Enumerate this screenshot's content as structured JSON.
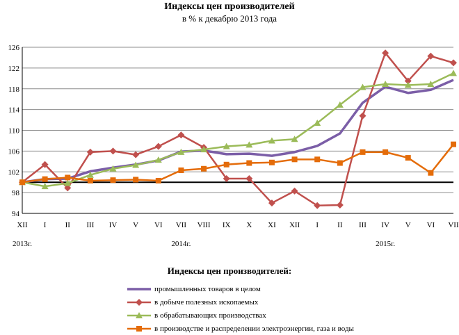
{
  "header": {
    "title": "Индексы цен производителей",
    "subtitle": "в % к декабрю 2013 года"
  },
  "legend": {
    "title": "Индексы цен производителей:"
  },
  "chart_data": {
    "type": "line",
    "title": "Индексы цен производителей",
    "subtitle": "в % к декабрю 2013 года",
    "xlabel": "",
    "ylabel": "",
    "ylim": [
      94,
      126
    ],
    "yticks": [
      "94",
      "98",
      "102",
      "106",
      "110",
      "114",
      "118",
      "122",
      "126"
    ],
    "grid": true,
    "baseline": 100,
    "legend_position": "bottom",
    "categories": [
      "XII",
      "I",
      "II",
      "III",
      "IV",
      "V",
      "VI",
      "VII",
      "VIII",
      "IX",
      "X",
      "XI",
      "XII",
      "I",
      "II",
      "III",
      "IV",
      "V",
      "VI",
      "VII"
    ],
    "year_labels": [
      {
        "text": "2013г.",
        "at": 0
      },
      {
        "text": "2014г.",
        "at": 7
      },
      {
        "text": "2015г.",
        "at": 16
      }
    ],
    "series": [
      {
        "name": "промышленных товаров в целом",
        "color": "#7b5ea7",
        "marker": "none",
        "values": [
          100.0,
          100.6,
          100.7,
          102.1,
          102.8,
          103.4,
          104.2,
          105.9,
          106.1,
          105.4,
          105.5,
          105.1,
          105.8,
          107.0,
          109.4,
          115.3,
          118.4,
          117.2,
          117.8,
          119.7
        ]
      },
      {
        "name": "в добыче полезных ископаемых",
        "color": "#c0504d",
        "marker": "diamond",
        "values": [
          100.0,
          103.4,
          98.9,
          105.8,
          106.0,
          105.3,
          106.9,
          109.1,
          106.7,
          100.7,
          100.7,
          96.0,
          98.3,
          95.5,
          95.6,
          112.8,
          124.9,
          119.5,
          124.3,
          123.0
        ]
      },
      {
        "name": "в обрабатывающих производствах",
        "color": "#9bbb59",
        "marker": "triangle",
        "values": [
          100.0,
          99.2,
          99.8,
          101.4,
          102.6,
          103.3,
          104.3,
          105.8,
          106.3,
          106.9,
          107.2,
          108.0,
          108.3,
          111.4,
          114.9,
          118.3,
          118.9,
          118.7,
          118.9,
          121.0
        ]
      },
      {
        "name": "в производстве и распределении электроэнергии, газа и воды",
        "color": "#e46c0a",
        "marker": "square",
        "values": [
          100.0,
          100.6,
          100.9,
          100.3,
          100.4,
          100.5,
          100.3,
          102.3,
          102.6,
          103.4,
          103.7,
          103.8,
          104.4,
          104.4,
          103.7,
          105.8,
          105.8,
          104.7,
          101.8,
          107.3
        ]
      }
    ]
  }
}
